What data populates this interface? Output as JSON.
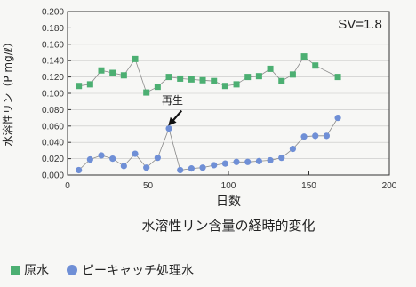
{
  "chart_data": {
    "type": "line",
    "title": "水溶性リン含量の経時的変化",
    "xlabel": "日数",
    "ylabel": "水溶性リン（P mg/ℓ）",
    "annotation": "SV=1.8",
    "callout": {
      "text": "再生",
      "x": 62,
      "y": 0.057
    },
    "xlim": [
      0,
      200
    ],
    "ylim": [
      0,
      0.2
    ],
    "xticks": [
      0,
      50,
      100,
      150,
      200
    ],
    "yticks": [
      0,
      0.02,
      0.04,
      0.06,
      0.08,
      0.1,
      0.12,
      0.14,
      0.16,
      0.18,
      0.2
    ],
    "xtick_labels": [
      "0",
      "50",
      "100",
      "150",
      "200"
    ],
    "ytick_labels": [
      "0.000",
      "0.020",
      "0.040",
      "0.060",
      "0.080",
      "0.100",
      "0.120",
      "0.140",
      "0.160",
      "0.180",
      "0.200"
    ],
    "series": [
      {
        "name": "原水",
        "marker": "square",
        "color": "#4caf72",
        "x": [
          7,
          14,
          21,
          28,
          35,
          42,
          49,
          56,
          63,
          70,
          77,
          84,
          91,
          98,
          105,
          112,
          119,
          126,
          133,
          140,
          147,
          154,
          168
        ],
        "y": [
          0.109,
          0.111,
          0.128,
          0.125,
          0.122,
          0.142,
          0.101,
          0.108,
          0.12,
          0.118,
          0.117,
          0.116,
          0.115,
          0.109,
          0.111,
          0.12,
          0.121,
          0.13,
          0.115,
          0.123,
          0.145,
          0.134,
          0.12
        ]
      },
      {
        "name": "ピーキャッチ処理水",
        "marker": "circle",
        "color": "#6f8fd6",
        "x": [
          7,
          14,
          21,
          28,
          35,
          42,
          49,
          56,
          63,
          70,
          77,
          84,
          91,
          98,
          105,
          112,
          119,
          126,
          133,
          140,
          147,
          154,
          161,
          168
        ],
        "y": [
          0.006,
          0.019,
          0.024,
          0.02,
          0.011,
          0.026,
          0.009,
          0.021,
          0.057,
          0.006,
          0.008,
          0.009,
          0.012,
          0.014,
          0.016,
          0.016,
          0.017,
          0.018,
          0.021,
          0.032,
          0.047,
          0.048,
          0.048,
          0.07
        ]
      }
    ]
  },
  "legend": {
    "items": [
      "原水",
      "ピーキャッチ処理水"
    ]
  }
}
